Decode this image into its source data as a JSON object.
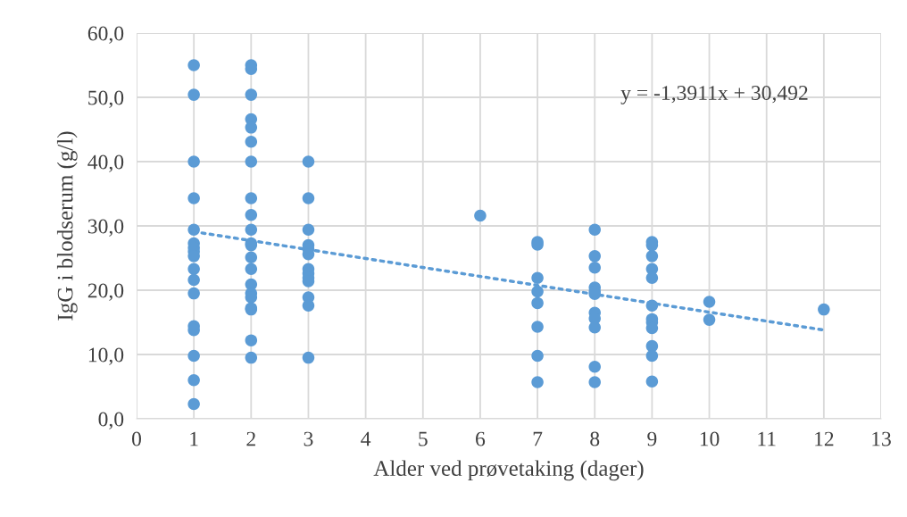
{
  "chart_data": {
    "type": "scatter",
    "xlabel": "Alder ved prøvetaking (dager)",
    "ylabel": "IgG i blodserum (g/l)",
    "xlim": [
      0,
      13
    ],
    "xticks": [
      0,
      1,
      2,
      3,
      4,
      5,
      6,
      7,
      8,
      9,
      10,
      11,
      12,
      13
    ],
    "ylim": [
      0,
      60
    ],
    "yticks": [
      {
        "value": 0,
        "label": "0,0"
      },
      {
        "value": 10,
        "label": "10,0"
      },
      {
        "value": 20,
        "label": "20,0"
      },
      {
        "value": 30,
        "label": "30,0"
      },
      {
        "value": 40,
        "label": "40,0"
      },
      {
        "value": 50,
        "label": "50,0"
      },
      {
        "value": 60,
        "label": "60,0"
      }
    ],
    "grid": true,
    "legend": false,
    "marker": "circle",
    "annotations": [
      "y = -1,3911x + 30,492"
    ],
    "series": [
      {
        "color": "#5b9bd5",
        "x": [
          1,
          1,
          1,
          1,
          1,
          1,
          1,
          1,
          1,
          1,
          1,
          1,
          1,
          1,
          1,
          1,
          1,
          2,
          2,
          2,
          2,
          2,
          2,
          2,
          2,
          2,
          2,
          2,
          2,
          2,
          2,
          2,
          2,
          2,
          2,
          2,
          2,
          2,
          3,
          3,
          3,
          3,
          3,
          3,
          3,
          3,
          3,
          3,
          3,
          3,
          3,
          6,
          7,
          7,
          7,
          7,
          7,
          7,
          7,
          7,
          8,
          8,
          8,
          8,
          8,
          8,
          8,
          8,
          8,
          8,
          8,
          9,
          9,
          9,
          9,
          9,
          9,
          9,
          9,
          9,
          9,
          9,
          9,
          10,
          10,
          12
        ],
        "values": [
          55.0,
          50.4,
          40.0,
          34.3,
          29.4,
          27.3,
          26.6,
          26.0,
          25.3,
          23.3,
          21.6,
          19.5,
          14.4,
          13.8,
          9.8,
          6.0,
          2.3,
          55.0,
          54.4,
          50.4,
          46.6,
          45.3,
          43.1,
          40.0,
          34.3,
          31.7,
          29.4,
          27.3,
          27.0,
          25.1,
          23.3,
          20.9,
          19.5,
          18.9,
          17.2,
          17.0,
          12.2,
          9.5,
          40.0,
          34.3,
          29.4,
          27.0,
          26.4,
          25.6,
          23.3,
          22.6,
          21.9,
          21.4,
          18.9,
          17.6,
          9.5,
          31.6,
          27.5,
          27.1,
          21.9,
          19.8,
          18.0,
          14.3,
          9.8,
          5.7,
          29.4,
          25.3,
          23.5,
          20.4,
          19.8,
          19.4,
          16.5,
          15.6,
          14.2,
          8.1,
          5.7,
          27.5,
          27.0,
          25.3,
          23.3,
          21.9,
          17.6,
          15.5,
          15.0,
          14.1,
          11.3,
          9.8,
          5.8,
          18.2,
          15.4,
          17.0
        ]
      },
      {
        "type": "line",
        "color": "#5b9bd5",
        "line_style": "dotted",
        "marker": "none",
        "x": [
          1,
          12
        ],
        "values": [
          29.1,
          13.8
        ]
      }
    ]
  }
}
